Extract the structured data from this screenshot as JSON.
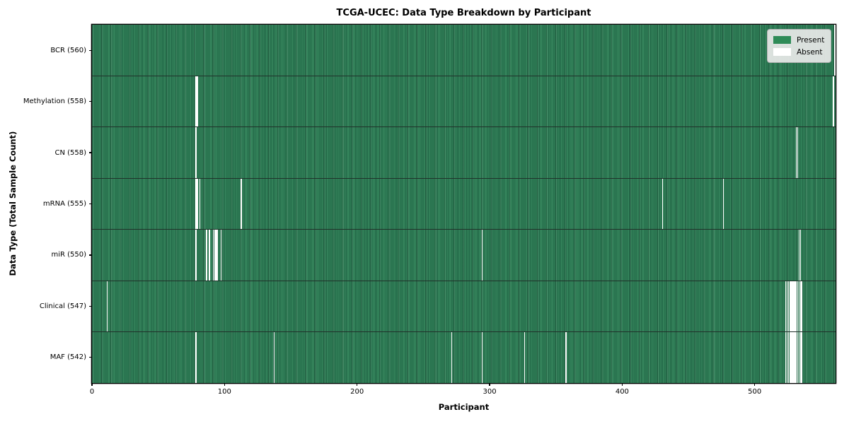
{
  "chart_data": {
    "type": "heatmap",
    "title": "TCGA-UCEC: Data Type Breakdown by Participant",
    "xlabel": "Participant",
    "ylabel": "Data Type (Total Sample Count)",
    "n_participants": 561,
    "x_ticks": [
      0,
      100,
      200,
      300,
      400,
      500
    ],
    "x_range": [
      0,
      561
    ],
    "grid": false,
    "legend_position": "upper right",
    "legend": [
      {
        "label": "Present",
        "color": "#2e8b57"
      },
      {
        "label": "Absent",
        "color": "#ffffff"
      }
    ],
    "rows": [
      {
        "data_type": "BCR",
        "label": "BCR (560)",
        "present_count": 560,
        "absent_participants": [
          560
        ]
      },
      {
        "data_type": "Methylation",
        "label": "Methylation (558)",
        "present_count": 558,
        "absent_participants": [
          78,
          79,
          559
        ]
      },
      {
        "data_type": "CN",
        "label": "CN (558)",
        "present_count": 558,
        "absent_participants": [
          78,
          531,
          532
        ]
      },
      {
        "data_type": "mRNA",
        "label": "mRNA (555)",
        "present_count": 555,
        "absent_participants": [
          78,
          79,
          81,
          112,
          430,
          476
        ]
      },
      {
        "data_type": "miR",
        "label": "miR (550)",
        "present_count": 550,
        "absent_participants": [
          78,
          86,
          88,
          91,
          92,
          93,
          94,
          97,
          294,
          533,
          534
        ]
      },
      {
        "data_type": "Clinical",
        "label": "Clinical (547)",
        "present_count": 547,
        "absent_participants": [
          11,
          523,
          524,
          525,
          526,
          527,
          528,
          529,
          530,
          531,
          532,
          533,
          534,
          535
        ]
      },
      {
        "data_type": "MAF",
        "label": "MAF (542)",
        "present_count": 542,
        "absent_participants": [
          78,
          137,
          271,
          294,
          326,
          357,
          523,
          524,
          525,
          526,
          527,
          528,
          529,
          530,
          531,
          532,
          533,
          534,
          535
        ]
      }
    ]
  }
}
